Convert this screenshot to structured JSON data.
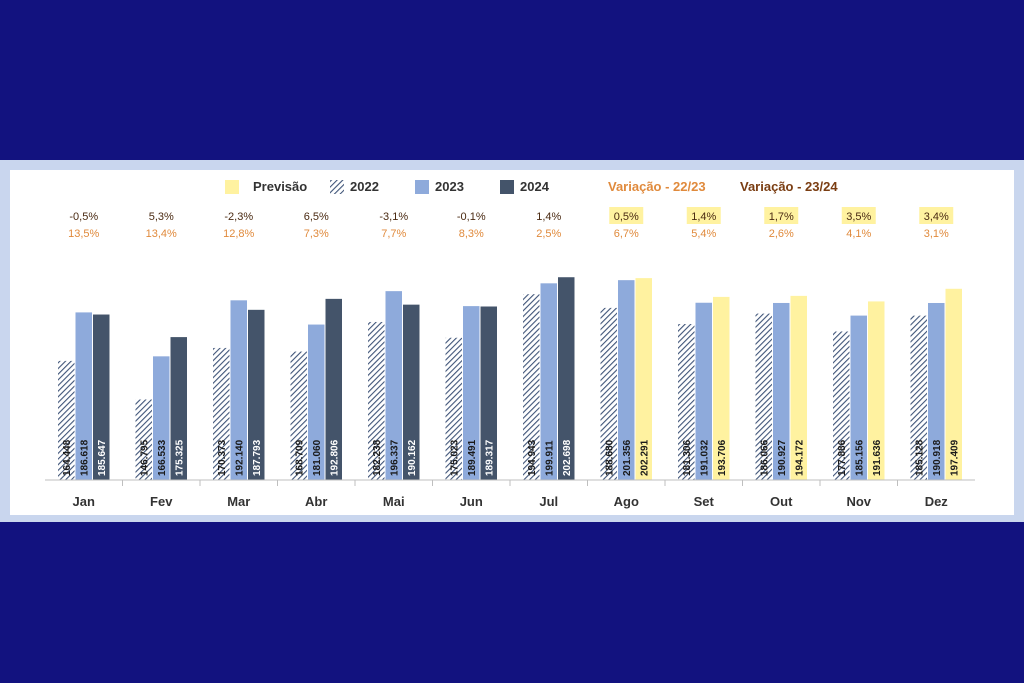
{
  "chart_data": {
    "type": "bar",
    "categories": [
      "Jan",
      "Fev",
      "Mar",
      "Abr",
      "Mai",
      "Jun",
      "Jul",
      "Ago",
      "Set",
      "Out",
      "Nov",
      "Dez"
    ],
    "series": [
      {
        "name": "2022",
        "values": [
          164448,
          146795,
          170373,
          168709,
          182238,
          175023,
          194943,
          188680,
          181306,
          186066,
          177886,
          185128
        ]
      },
      {
        "name": "2023",
        "values": [
          186618,
          166533,
          192140,
          181060,
          196337,
          189491,
          199911,
          201356,
          191032,
          190927,
          185156,
          190918
        ]
      },
      {
        "name": "2024",
        "values": [
          185647,
          175325,
          187793,
          192806,
          190162,
          189317,
          202698,
          null,
          null,
          null,
          null,
          null
        ]
      },
      {
        "name": "Previsão",
        "values": [
          null,
          null,
          null,
          null,
          null,
          null,
          null,
          202291,
          193706,
          194172,
          191636,
          197409
        ]
      }
    ],
    "value_labels": {
      "2022": [
        "164.448",
        "146.795",
        "170.373",
        "168.709",
        "182.238",
        "175.023",
        "194.943",
        "188.680",
        "181.306",
        "186.066",
        "177.886",
        "185.128"
      ],
      "2023": [
        "186.618",
        "166.533",
        "192.140",
        "181.060",
        "196.337",
        "189.491",
        "199.911",
        "201.356",
        "191.032",
        "190.927",
        "185.156",
        "190.918"
      ],
      "third": [
        "185.647",
        "175.325",
        "187.793",
        "192.806",
        "190.162",
        "189.317",
        "202.698",
        "202.291",
        "193.706",
        "194.172",
        "191.636",
        "197.409"
      ]
    },
    "variation_22_23": [
      "13,5%",
      "13,4%",
      "12,8%",
      "7,3%",
      "7,7%",
      "8,3%",
      "2,5%",
      "6,7%",
      "5,4%",
      "2,6%",
      "4,1%",
      "3,1%"
    ],
    "variation_23_24": [
      "-0,5%",
      "5,3%",
      "-2,3%",
      "6,5%",
      "-3,1%",
      "-0,1%",
      "1,4%",
      "0,5%",
      "1,4%",
      "1,7%",
      "3,5%",
      "3,4%"
    ],
    "legend": {
      "previsao": "Previsão",
      "y2022": "2022",
      "y2023": "2023",
      "y2024": "2024",
      "var_22_23": "Variação - 22/23",
      "var_23_24": "Variação - 23/24"
    },
    "colors": {
      "background": "#12127f",
      "panel": "#c9d6ee",
      "c2022": "#3f5478",
      "c2023": "#8eaadb",
      "c2024": "#44546a",
      "previsao": "#fff2a0",
      "var_22_23": "#e08a3c",
      "var_23_24": "#4a2a12"
    },
    "ylim": [
      110000,
      206000
    ],
    "legend_position": "top"
  }
}
